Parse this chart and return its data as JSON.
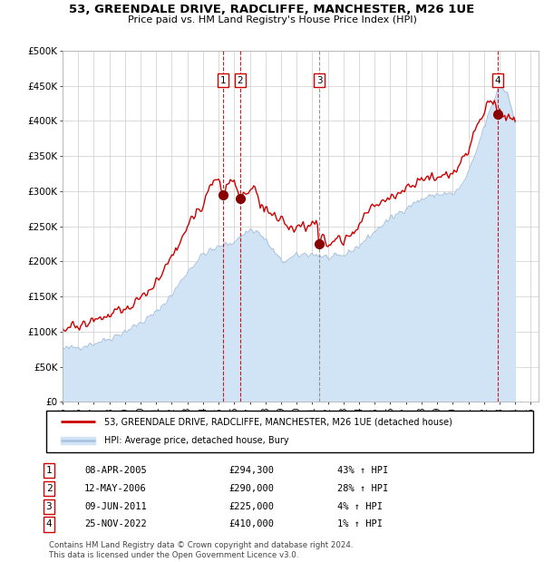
{
  "title": "53, GREENDALE DRIVE, RADCLIFFE, MANCHESTER, M26 1UE",
  "subtitle": "Price paid vs. HM Land Registry's House Price Index (HPI)",
  "ylabel_ticks": [
    "£0",
    "£50K",
    "£100K",
    "£150K",
    "£200K",
    "£250K",
    "£300K",
    "£350K",
    "£400K",
    "£450K",
    "£500K"
  ],
  "ytick_values": [
    0,
    50000,
    100000,
    150000,
    200000,
    250000,
    300000,
    350000,
    400000,
    450000,
    500000
  ],
  "xlim_start": 1995.0,
  "xlim_end": 2025.5,
  "ylim_min": 0,
  "ylim_max": 500000,
  "hpi_color": "#aac4e0",
  "hpi_fill_color": "#d0e4f5",
  "property_color": "#cc0000",
  "sale_marker_color": "#880000",
  "vline_color_red": "#cc0000",
  "vline_color_gray": "#888888",
  "grid_color": "#cccccc",
  "legend_label_property": "53, GREENDALE DRIVE, RADCLIFFE, MANCHESTER, M26 1UE (detached house)",
  "legend_label_hpi": "HPI: Average price, detached house, Bury",
  "sales": [
    {
      "num": 1,
      "date": "08-APR-2005",
      "price": 294300,
      "pct": "43%",
      "x": 2005.27,
      "vline": "red"
    },
    {
      "num": 2,
      "date": "12-MAY-2006",
      "price": 290000,
      "pct": "28%",
      "x": 2006.37,
      "vline": "red"
    },
    {
      "num": 3,
      "date": "09-JUN-2011",
      "price": 225000,
      "pct": "4%",
      "x": 2011.44,
      "vline": "gray"
    },
    {
      "num": 4,
      "date": "25-NOV-2022",
      "price": 410000,
      "pct": "1%",
      "x": 2022.9,
      "vline": "red"
    }
  ],
  "footer": "Contains HM Land Registry data © Crown copyright and database right 2024.\nThis data is licensed under the Open Government Licence v3.0."
}
